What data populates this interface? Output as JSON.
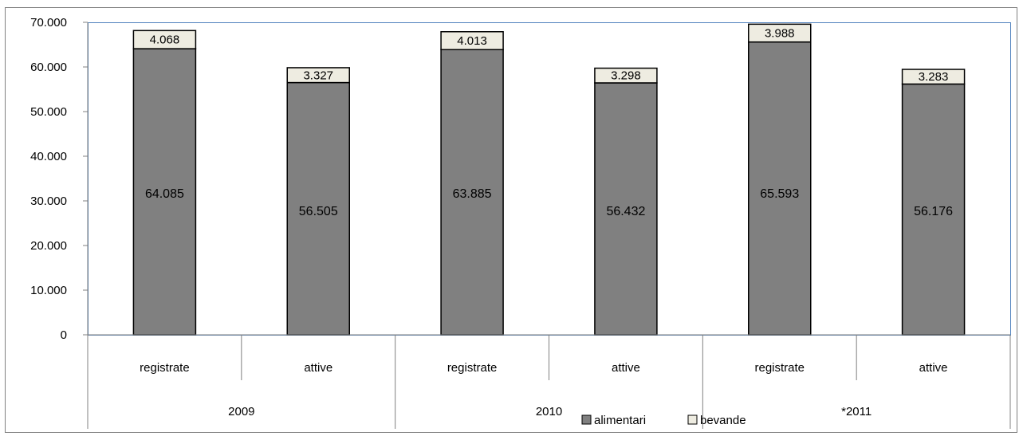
{
  "chart_data": {
    "type": "bar",
    "stacked": true,
    "categories": [
      "registrate",
      "attive",
      "registrate",
      "attive",
      "registrate",
      "attive"
    ],
    "groups": [
      {
        "label": "2009",
        "categories": [
          "registrate",
          "attive"
        ]
      },
      {
        "label": "2010",
        "categories": [
          "registrate",
          "attive"
        ]
      },
      {
        "label": "*2011",
        "categories": [
          "registrate",
          "attive"
        ]
      }
    ],
    "series": [
      {
        "name": "alimentari",
        "values": [
          64085,
          56505,
          63885,
          56432,
          65593,
          56176
        ],
        "labels": [
          "64.085",
          "56.505",
          "63.885",
          "56.432",
          "65.593",
          "56.176"
        ],
        "color": "#808080"
      },
      {
        "name": "bevande",
        "values": [
          4068,
          3327,
          4013,
          3298,
          3988,
          3283
        ],
        "labels": [
          "4.068",
          "3.327",
          "4.013",
          "3.298",
          "3.988",
          "3.283"
        ],
        "color": "#eeece1"
      }
    ],
    "ylim": [
      0,
      70000
    ],
    "yticks": [
      0,
      10000,
      20000,
      30000,
      40000,
      50000,
      60000,
      70000
    ],
    "ytick_labels": [
      "0",
      "10.000",
      "20.000",
      "30.000",
      "40.000",
      "50.000",
      "60.000",
      "70.000"
    ],
    "grid": false,
    "legend_position": "bottom",
    "plot_border_color": "#4f81bd"
  }
}
